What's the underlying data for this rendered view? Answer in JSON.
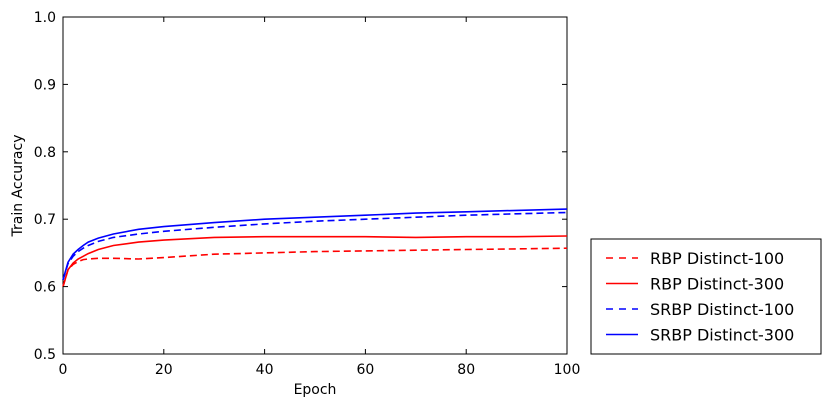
{
  "chart_data": {
    "type": "line",
    "title": "",
    "xlabel": "Epoch",
    "ylabel": "Train Accuracy",
    "xlim": [
      0,
      100
    ],
    "ylim": [
      0.5,
      1.0
    ],
    "xticks": [
      "0",
      "20",
      "40",
      "60",
      "80",
      "100"
    ],
    "yticks": [
      "0.5",
      "0.6",
      "0.7",
      "0.8",
      "0.9",
      "1.0"
    ],
    "grid": false,
    "legend_position": "outside-bottom-right",
    "series": [
      {
        "name": "RBP Distinct-100",
        "color": "#ff0000",
        "dash": "dashed",
        "x": [
          0,
          1,
          2,
          3,
          4,
          5,
          7,
          10,
          15,
          20,
          30,
          40,
          50,
          60,
          70,
          80,
          90,
          100
        ],
        "y": [
          0.6,
          0.625,
          0.633,
          0.637,
          0.64,
          0.641,
          0.642,
          0.642,
          0.641,
          0.643,
          0.648,
          0.65,
          0.652,
          0.653,
          0.654,
          0.655,
          0.656,
          0.657
        ]
      },
      {
        "name": "RBP Distinct-300",
        "color": "#ff0000",
        "dash": "solid",
        "x": [
          0,
          1,
          2,
          3,
          4,
          5,
          7,
          10,
          15,
          20,
          30,
          40,
          50,
          60,
          70,
          80,
          90,
          100
        ],
        "y": [
          0.6,
          0.625,
          0.635,
          0.641,
          0.645,
          0.649,
          0.655,
          0.661,
          0.666,
          0.669,
          0.673,
          0.674,
          0.674,
          0.674,
          0.673,
          0.674,
          0.674,
          0.675
        ]
      },
      {
        "name": "SRBP Distinct-100",
        "color": "#0000ff",
        "dash": "dashed",
        "x": [
          0,
          1,
          2,
          3,
          4,
          5,
          7,
          10,
          15,
          20,
          30,
          40,
          50,
          60,
          70,
          80,
          90,
          100
        ],
        "y": [
          0.61,
          0.634,
          0.645,
          0.652,
          0.657,
          0.661,
          0.667,
          0.673,
          0.678,
          0.682,
          0.688,
          0.693,
          0.697,
          0.7,
          0.703,
          0.706,
          0.708,
          0.71
        ]
      },
      {
        "name": "SRBP Distinct-300",
        "color": "#0000ff",
        "dash": "solid",
        "x": [
          0,
          1,
          2,
          3,
          4,
          5,
          7,
          10,
          15,
          20,
          30,
          40,
          50,
          60,
          70,
          80,
          90,
          100
        ],
        "y": [
          0.61,
          0.636,
          0.648,
          0.655,
          0.661,
          0.666,
          0.672,
          0.678,
          0.685,
          0.689,
          0.695,
          0.7,
          0.703,
          0.706,
          0.709,
          0.711,
          0.713,
          0.715
        ]
      }
    ]
  }
}
